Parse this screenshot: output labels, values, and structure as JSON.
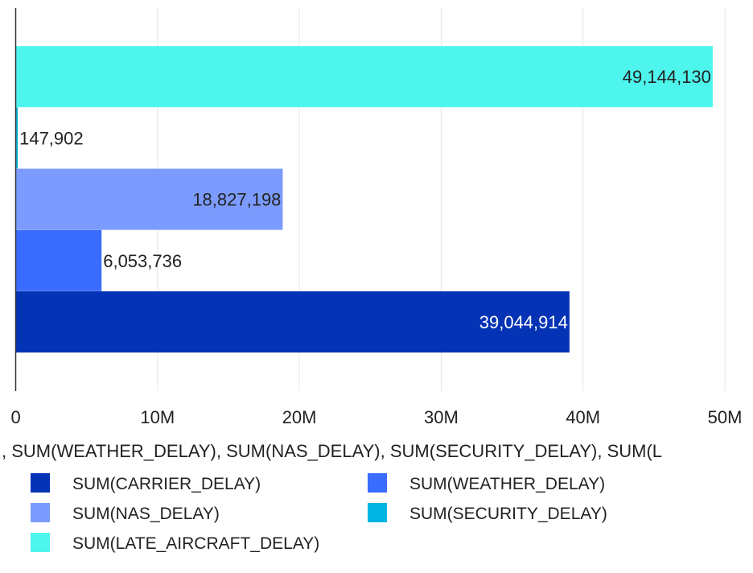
{
  "chart_data": {
    "type": "bar",
    "orientation": "horizontal",
    "xlabel": ", SUM(WEATHER_DELAY), SUM(NAS_DELAY), SUM(SECURITY_DELAY), SUM(L",
    "ylabel": "",
    "xlim": [
      0,
      50000000
    ],
    "x_ticks": [
      {
        "value": 0,
        "label": "0"
      },
      {
        "value": 10000000,
        "label": "10M"
      },
      {
        "value": 20000000,
        "label": "20M"
      },
      {
        "value": 30000000,
        "label": "30M"
      },
      {
        "value": 40000000,
        "label": "40M"
      },
      {
        "value": 50000000,
        "label": "50M"
      }
    ],
    "grid": true,
    "legend_position": "bottom",
    "series": [
      {
        "name": "SUM(CARRIER_DELAY)",
        "value": 39044914,
        "label": "39,044,914",
        "color": "#0433b5",
        "label_color": "#ffffff",
        "label_inside": true
      },
      {
        "name": "SUM(WEATHER_DELAY)",
        "value": 6053736,
        "label": "6,053,736",
        "color": "#3a6cff",
        "label_color": "#222222",
        "label_inside": false
      },
      {
        "name": "SUM(NAS_DELAY)",
        "value": 18827198,
        "label": "18,827,198",
        "color": "#7b9bff",
        "label_color": "#222222",
        "label_inside": true
      },
      {
        "name": "SUM(SECURITY_DELAY)",
        "value": 147902,
        "label": "147,902",
        "color": "#00b5e2",
        "label_color": "#222222",
        "label_inside": false
      },
      {
        "name": "SUM(LATE_AIRCRAFT_DELAY)",
        "value": 49144130,
        "label": "49,144,130",
        "color": "#4ef5ec",
        "label_color": "#222222",
        "label_inside": true
      }
    ]
  }
}
